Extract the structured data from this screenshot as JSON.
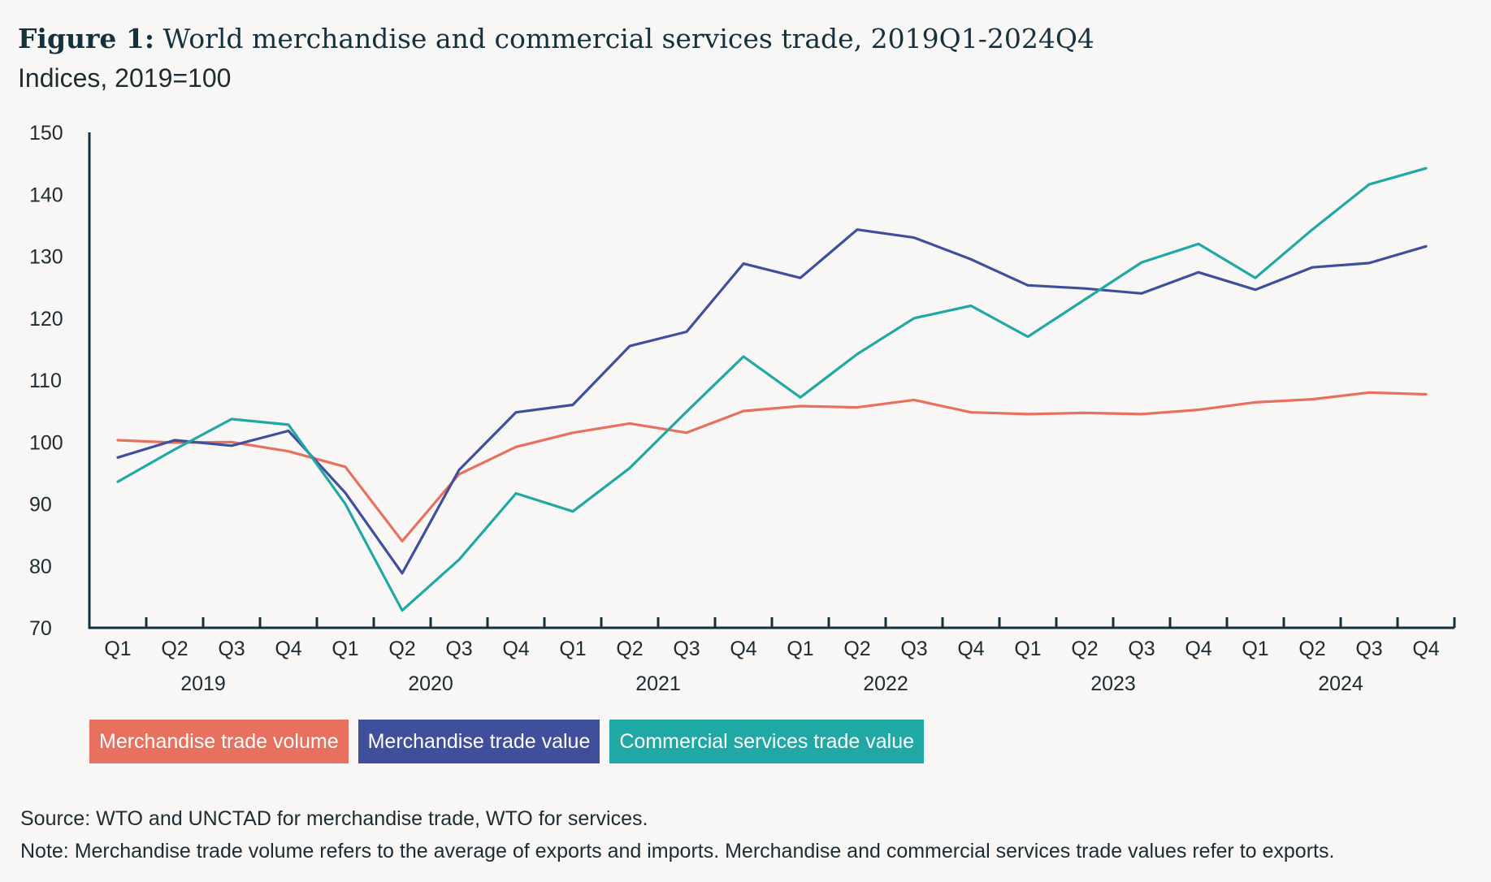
{
  "figure": {
    "label": "Figure 1:",
    "title": "World merchandise and commercial services trade, 2019Q1-2024Q4",
    "subtitle": "Indices, 2019=100",
    "source": "Source: WTO and UNCTAD for merchandise trade, WTO for services.",
    "note": "Note: Merchandise trade volume refers to the average of exports and imports. Merchandise and commercial services trade values refer to exports."
  },
  "colors": {
    "volume": "#e8705f",
    "value": "#3f4f9c",
    "services": "#1fa8a4",
    "axis": "#15313d"
  },
  "chart_data": {
    "type": "line",
    "title": "World merchandise and commercial services trade, 2019Q1-2024Q4",
    "ylabel": "Indices, 2019=100",
    "xlabel": "",
    "ylim": [
      70,
      150
    ],
    "yticks": [
      70,
      80,
      90,
      100,
      110,
      120,
      130,
      140,
      150
    ],
    "grid": false,
    "legend_position": "bottom",
    "quarters": [
      "Q1",
      "Q2",
      "Q3",
      "Q4",
      "Q1",
      "Q2",
      "Q3",
      "Q4",
      "Q1",
      "Q2",
      "Q3",
      "Q4",
      "Q1",
      "Q2",
      "Q3",
      "Q4",
      "Q1",
      "Q2",
      "Q3",
      "Q4",
      "Q1",
      "Q2",
      "Q3",
      "Q4"
    ],
    "years": [
      "2019",
      "2020",
      "2021",
      "2022",
      "2023",
      "2024"
    ],
    "series": [
      {
        "name": "Merchandise trade volume",
        "color_key": "volume",
        "values": [
          100.3,
          99.9,
          100.0,
          98.5,
          96.0,
          84.0,
          94.8,
          99.2,
          101.5,
          103.0,
          101.5,
          105.0,
          105.8,
          105.6,
          106.8,
          104.8,
          104.5,
          104.7,
          104.5,
          105.2,
          106.4,
          106.9,
          108.0,
          107.7
        ]
      },
      {
        "name": "Merchandise trade value",
        "color_key": "value",
        "values": [
          97.5,
          100.3,
          99.4,
          101.8,
          91.8,
          78.8,
          95.5,
          104.8,
          106.0,
          115.5,
          117.8,
          128.8,
          126.5,
          134.3,
          133.0,
          129.5,
          125.3,
          124.8,
          124.0,
          127.4,
          124.6,
          128.2,
          128.9,
          131.6
        ]
      },
      {
        "name": "Commercial services trade value",
        "color_key": "services",
        "values": [
          93.6,
          98.8,
          103.7,
          102.8,
          90.0,
          72.8,
          81.0,
          91.7,
          88.8,
          95.8,
          104.9,
          113.8,
          107.2,
          114.2,
          120.0,
          122.0,
          117.0,
          123.0,
          129.0,
          132.0,
          126.5,
          134.3,
          141.6,
          144.2
        ]
      }
    ]
  }
}
